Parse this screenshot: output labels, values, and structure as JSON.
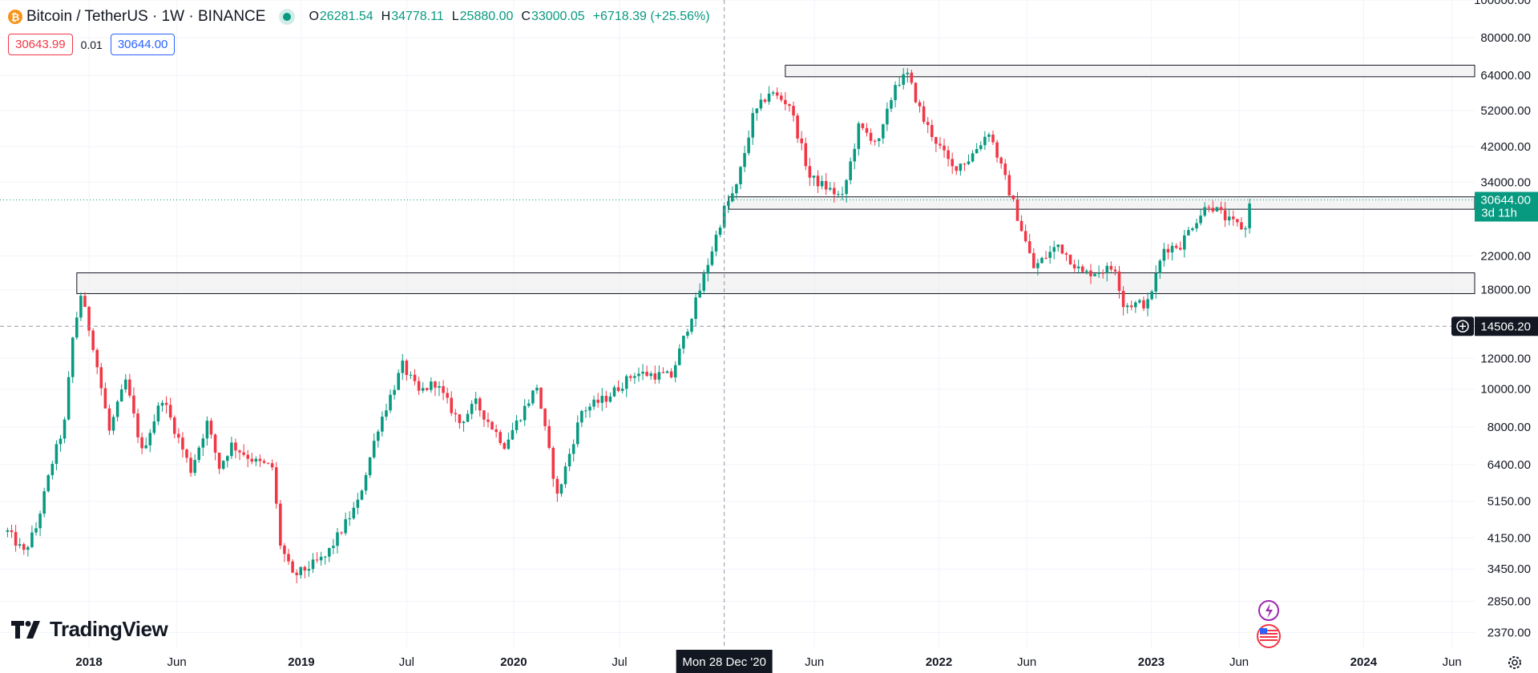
{
  "header": {
    "symbol": "Bitcoin / TetherUS · 1W · BINANCE",
    "coin_glyph": "₿",
    "ohlc": {
      "open_key": "O",
      "open": "26281.54",
      "high_key": "H",
      "high": "34778.11",
      "low_key": "L",
      "low": "25880.00",
      "close_key": "C",
      "close": "33000.05",
      "change": "+6718.39 (+25.56%)"
    }
  },
  "quote": {
    "sell": "30643.99",
    "spread": "0.01",
    "buy": "30644.00"
  },
  "logo": {
    "text": "TradingView"
  },
  "colors": {
    "up": "#089981",
    "down": "#f23645",
    "zone_fill": "#ececec",
    "grid": "#f0f3fa"
  },
  "chart_data": {
    "type": "candlestick",
    "title": "Bitcoin / TetherUS · 1W · BINANCE",
    "y_scale": "log",
    "ylim": [
      2150,
      100000
    ],
    "y_ticks": [
      100000,
      80000,
      64000,
      52000,
      42000,
      34000,
      22000,
      18000,
      12000,
      10000,
      8000,
      6400,
      5150,
      4150,
      3450,
      2850,
      2370
    ],
    "y_tick_labels": [
      "100000.00",
      "80000.00",
      "64000.00",
      "52000.00",
      "42000.00",
      "34000.00",
      "22000.00",
      "18000.00",
      "12000.00",
      "10000.00",
      "8000.00",
      "6400.00",
      "5150.00",
      "4150.00",
      "3450.00",
      "2850.00",
      "2370.00"
    ],
    "x_range": [
      "2017-08-01",
      "2024-07-10"
    ],
    "x_ticks": [
      {
        "date": "2018-01-01",
        "label": "2018",
        "bold": true
      },
      {
        "date": "2018-06-01",
        "label": "Jun",
        "bold": false
      },
      {
        "date": "2019-01-01",
        "label": "2019",
        "bold": true
      },
      {
        "date": "2019-07-01",
        "label": "Jul",
        "bold": false
      },
      {
        "date": "2020-01-01",
        "label": "2020",
        "bold": true
      },
      {
        "date": "2020-07-01",
        "label": "Jul",
        "bold": false
      },
      {
        "date": "2021-06-01",
        "label": "Jun",
        "bold": false
      },
      {
        "date": "2022-01-01",
        "label": "2022",
        "bold": true
      },
      {
        "date": "2022-06-01",
        "label": "Jun",
        "bold": false
      },
      {
        "date": "2023-01-01",
        "label": "2023",
        "bold": true
      },
      {
        "date": "2023-06-01",
        "label": "Jun",
        "bold": false
      },
      {
        "date": "2024-01-01",
        "label": "2024",
        "bold": true
      },
      {
        "date": "2024-06-01",
        "label": "Jun",
        "bold": false
      }
    ],
    "crosshair": {
      "date": "2020-12-28",
      "date_label": "Mon 28 Dec '20",
      "price": 14506.2,
      "price_label": "14506.20"
    },
    "last_price": {
      "value": 30644.0,
      "label": "30644.00",
      "countdown": "3d 11h"
    },
    "zones": [
      {
        "from": "2021-04-12",
        "to": "2024-07-10",
        "low": 63500,
        "high": 68000
      },
      {
        "from": "2021-01-05",
        "to": "2024-07-10",
        "low": 29000,
        "high": 31200
      },
      {
        "from": "2017-12-11",
        "to": "2024-07-10",
        "low": 17600,
        "high": 19900
      }
    ],
    "anchors": [
      [
        "2017-08-14",
        4300
      ],
      [
        "2017-09-11",
        3800
      ],
      [
        "2017-10-02",
        4400
      ],
      [
        "2017-10-30",
        6500
      ],
      [
        "2017-11-20",
        8200
      ],
      [
        "2017-12-04",
        13500
      ],
      [
        "2017-12-18",
        17500
      ],
      [
        "2018-01-08",
        13000
      ],
      [
        "2018-02-05",
        7800
      ],
      [
        "2018-03-05",
        10500
      ],
      [
        "2018-04-02",
        6900
      ],
      [
        "2018-05-07",
        9500
      ],
      [
        "2018-06-25",
        6200
      ],
      [
        "2018-07-23",
        8200
      ],
      [
        "2018-08-13",
        6300
      ],
      [
        "2018-09-03",
        7200
      ],
      [
        "2018-10-15",
        6500
      ],
      [
        "2018-11-12",
        6300
      ],
      [
        "2018-11-26",
        4000
      ],
      [
        "2018-12-17",
        3300
      ],
      [
        "2019-02-11",
        3700
      ],
      [
        "2019-04-08",
        5100
      ],
      [
        "2019-05-13",
        8000
      ],
      [
        "2019-06-24",
        11500
      ],
      [
        "2019-07-22",
        9800
      ],
      [
        "2019-08-19",
        10400
      ],
      [
        "2019-09-30",
        8200
      ],
      [
        "2019-10-28",
        9200
      ],
      [
        "2019-12-16",
        7200
      ],
      [
        "2020-02-10",
        10200
      ],
      [
        "2020-03-16",
        5300
      ],
      [
        "2020-04-27",
        8800
      ],
      [
        "2020-06-08",
        9500
      ],
      [
        "2020-07-27",
        11000
      ],
      [
        "2020-09-28",
        10800
      ],
      [
        "2020-11-16",
        18000
      ],
      [
        "2020-12-28",
        29000
      ],
      [
        "2021-01-18",
        33000
      ],
      [
        "2021-02-15",
        50000
      ],
      [
        "2021-03-15",
        58000
      ],
      [
        "2021-04-19",
        54000
      ],
      [
        "2021-05-24",
        35000
      ],
      [
        "2021-06-21",
        33000
      ],
      [
        "2021-07-19",
        31000
      ],
      [
        "2021-08-16",
        47000
      ],
      [
        "2021-09-20",
        43000
      ],
      [
        "2021-10-18",
        61000
      ],
      [
        "2021-11-08",
        64000
      ],
      [
        "2021-12-06",
        49000
      ],
      [
        "2022-01-24",
        37000
      ],
      [
        "2022-02-21",
        39000
      ],
      [
        "2022-03-28",
        46000
      ],
      [
        "2022-05-09",
        30000
      ],
      [
        "2022-06-13",
        20500
      ],
      [
        "2022-07-25",
        23500
      ],
      [
        "2022-09-05",
        19800
      ],
      [
        "2022-10-31",
        20500
      ],
      [
        "2022-11-14",
        16500
      ],
      [
        "2022-12-26",
        16600
      ],
      [
        "2023-01-23",
        23000
      ],
      [
        "2023-02-20",
        23500
      ],
      [
        "2023-03-13",
        26500
      ],
      [
        "2023-04-10",
        30000
      ],
      [
        "2023-05-15",
        27000
      ],
      [
        "2023-06-12",
        25800
      ],
      [
        "2023-06-19",
        30644
      ]
    ]
  },
  "icons": [
    "bitcoin-icon",
    "tradingview-logo-icon",
    "add-alert-icon",
    "lightning-icon",
    "us-flag-icon",
    "settings-gear-icon"
  ]
}
